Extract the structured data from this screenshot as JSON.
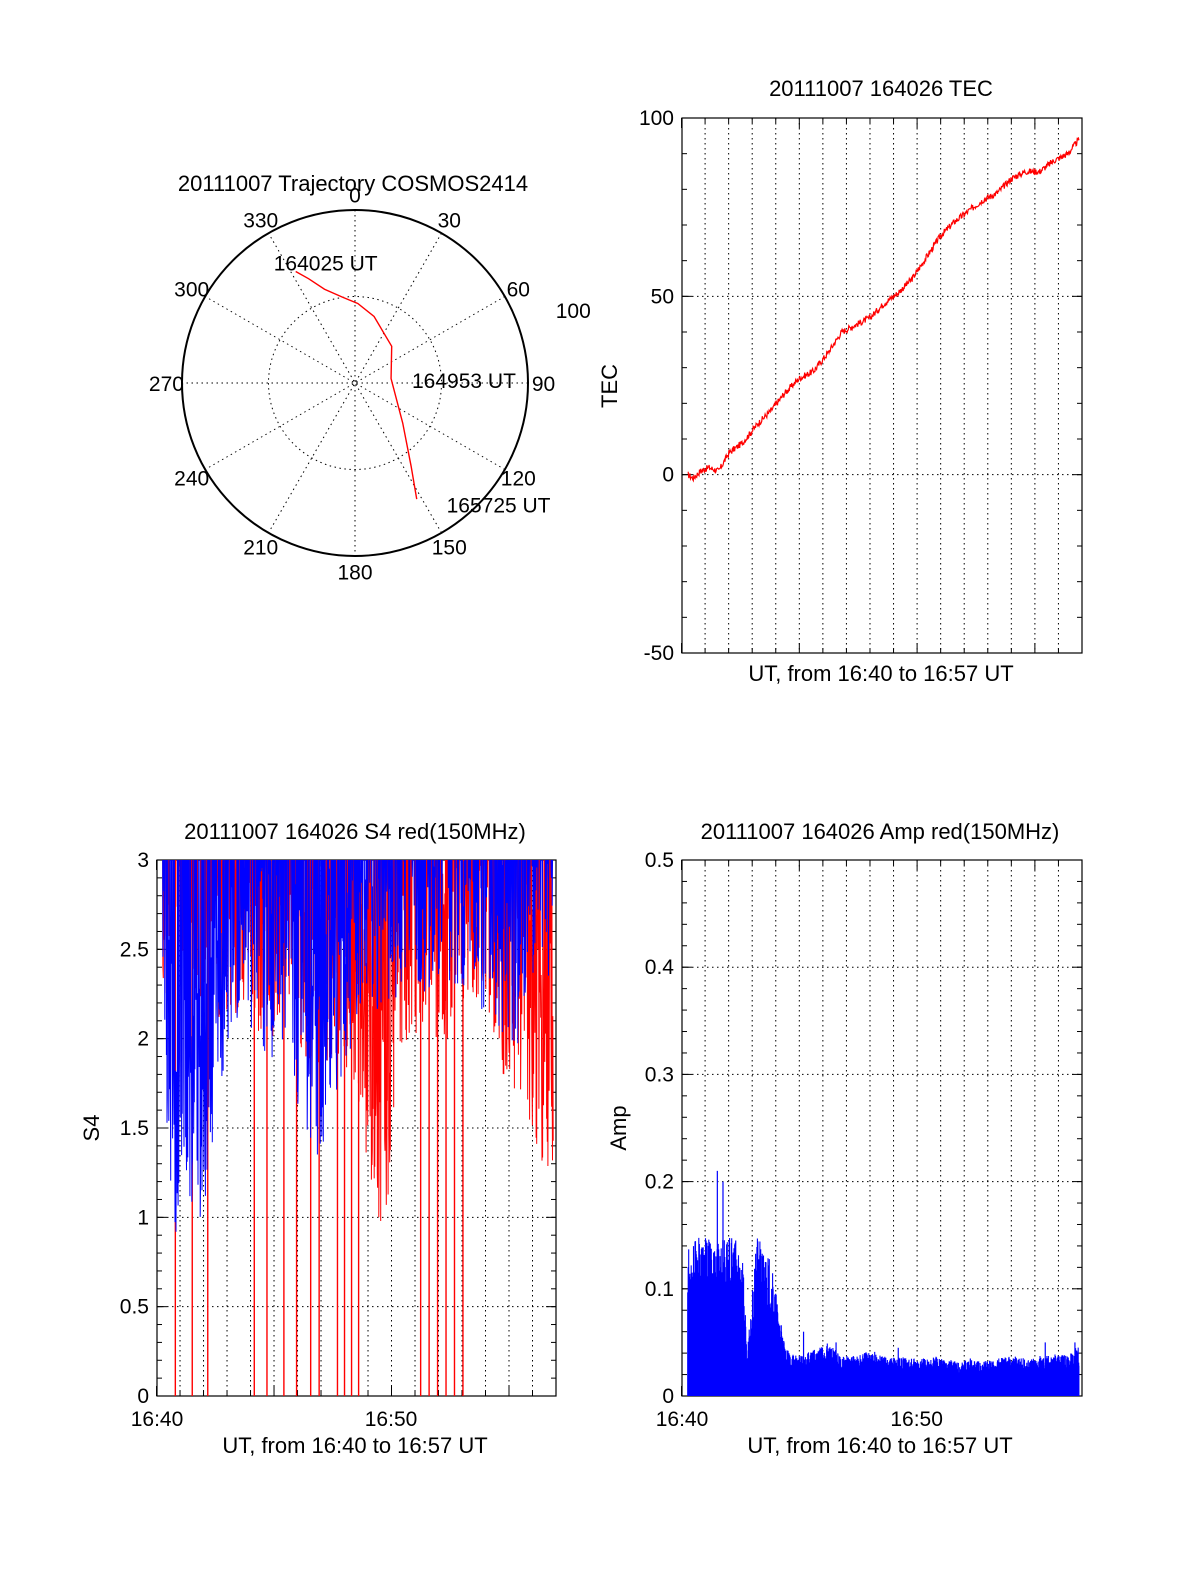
{
  "colors": {
    "red": "#ff0000",
    "blue": "#0000ff",
    "axis": "#000000"
  },
  "chart_data": [
    {
      "id": "trajectory",
      "type": "polar",
      "title": "20111007 Trajectory COSMOS2414",
      "angle_labels": [
        "0",
        "30",
        "60",
        "90",
        "120",
        "150",
        "180",
        "210",
        "240",
        "270",
        "300",
        "330"
      ],
      "radius_label": "100",
      "radius_range": [
        0,
        100
      ],
      "grid": true,
      "series": [
        {
          "color": "red",
          "points": [
            [
              332,
              73
            ],
            [
              336,
              66
            ],
            [
              342,
              57
            ],
            [
              352,
              50
            ],
            [
              2,
              46
            ],
            [
              16,
              40
            ],
            [
              45,
              30
            ],
            [
              83,
              21
            ],
            [
              130,
              36
            ],
            [
              146,
              58
            ],
            [
              152,
              76
            ]
          ]
        }
      ],
      "annotations": [
        {
          "text": "164025 UT",
          "az": 326,
          "r": 84
        },
        {
          "text": "164953 UT",
          "az": 87,
          "r": 33
        },
        {
          "text": "165725 UT",
          "az": 143,
          "r": 88
        }
      ]
    },
    {
      "id": "tec",
      "type": "line",
      "title": "20111007 164026 TEC",
      "xlabel": "UT, from 16:40 to 16:57 UT",
      "ylabel": "TEC",
      "xlim": [
        16.667,
        16.95
      ],
      "ylim": [
        -50,
        100
      ],
      "yticks": [
        "-50",
        "0",
        "50",
        "100"
      ],
      "xticks": [],
      "grid": true,
      "series": [
        {
          "color": "red",
          "x": [
            16.671,
            16.675,
            16.68,
            16.686,
            16.693,
            16.7,
            16.71,
            16.72,
            16.73,
            16.74,
            16.75,
            16.76,
            16.77,
            16.78,
            16.79,
            16.8,
            16.81,
            16.82,
            16.83,
            16.84,
            16.85,
            16.86,
            16.87,
            16.88,
            16.89,
            16.9,
            16.91,
            16.92,
            16.93,
            16.94,
            16.948
          ],
          "y": [
            0,
            -1,
            1,
            2,
            1,
            6,
            9,
            14,
            18,
            23,
            27,
            29,
            34,
            40,
            42,
            44,
            48,
            51,
            55,
            61,
            67,
            71,
            74,
            77,
            79,
            83,
            85,
            85,
            88,
            90,
            94
          ]
        }
      ]
    },
    {
      "id": "s4",
      "type": "line",
      "title": "20111007 164026 S4 red(150MHz)",
      "xlabel": "UT, from 16:40 to 16:57 UT",
      "ylabel": "S4",
      "xlim": [
        16.667,
        16.95
      ],
      "ylim": [
        0,
        3
      ],
      "yticks": [
        "0",
        "0.5",
        "1",
        "1.5",
        "2",
        "2.5",
        "3"
      ],
      "xticks": [
        {
          "value": 16.667,
          "label": "16:40"
        },
        {
          "value": 16.833,
          "label": "16:50"
        }
      ],
      "grid": true,
      "series": [
        {
          "color": "red",
          "x": [
            16.671,
            16.68,
            16.69,
            16.7,
            16.71,
            16.72,
            16.73,
            16.74,
            16.75,
            16.76,
            16.77,
            16.78,
            16.79,
            16.8,
            16.81,
            16.82,
            16.83,
            16.84,
            16.85,
            16.86,
            16.87,
            16.88,
            16.89,
            16.9,
            16.91,
            16.92,
            16.93,
            16.94,
            16.948
          ],
          "y": [
            2.6,
            2.9,
            2.8,
            2.7,
            2.6,
            2.5,
            2.6,
            2.5,
            2.4,
            2.5,
            2.4,
            2.3,
            2.2,
            2.3,
            2.1,
            1.6,
            1.3,
            2.4,
            2.5,
            2.6,
            2.4,
            2.7,
            2.6,
            2.5,
            2.3,
            2.2,
            2.0,
            1.8,
            1.7
          ],
          "dropouts": [
            16.68,
            16.692,
            16.703,
            16.736,
            16.745,
            16.757,
            16.766,
            16.776,
            16.782,
            16.795,
            16.8,
            16.805,
            16.81,
            16.854,
            16.86,
            16.866,
            16.872,
            16.878,
            16.884
          ]
        },
        {
          "color": "blue",
          "x": [
            16.671,
            16.675,
            16.68,
            16.69,
            16.7,
            16.71,
            16.72,
            16.73,
            16.74,
            16.75,
            16.76,
            16.77,
            16.78,
            16.79,
            16.8,
            16.81,
            16.82,
            16.83,
            16.84,
            16.85,
            16.86,
            16.87,
            16.88,
            16.89,
            16.9,
            16.91,
            16.92,
            16.93,
            16.94,
            16.948
          ],
          "y": [
            2.2,
            1.8,
            1.4,
            1.4,
            1.45,
            2.1,
            2.6,
            2.6,
            2.4,
            2.2,
            2.4,
            2.0,
            1.6,
            2.1,
            2.3,
            2.5,
            2.6,
            2.7,
            2.7,
            2.75,
            2.7,
            2.75,
            2.8,
            2.7,
            2.6,
            2.5,
            2.3,
            2.8,
            2.9,
            2.8
          ]
        }
      ]
    },
    {
      "id": "amp",
      "type": "area",
      "title": "20111007 164026 Amp red(150MHz)",
      "xlabel": "UT, from 16:40 to 16:57 UT",
      "ylabel": "Amp",
      "xlim": [
        16.667,
        16.95
      ],
      "ylim": [
        0,
        0.5
      ],
      "yticks": [
        "0",
        "0.1",
        "0.2",
        "0.3",
        "0.4",
        "0.5"
      ],
      "xticks": [
        {
          "value": 16.667,
          "label": "16:40"
        },
        {
          "value": 16.833,
          "label": "16:50"
        }
      ],
      "grid": true,
      "series": [
        {
          "color": "blue",
          "x": [
            16.671,
            16.68,
            16.69,
            16.7,
            16.71,
            16.713,
            16.72,
            16.73,
            16.74,
            16.75,
            16.76,
            16.77,
            16.78,
            16.79,
            16.8,
            16.81,
            16.82,
            16.83,
            16.84,
            16.85,
            16.86,
            16.87,
            16.88,
            16.89,
            16.9,
            16.91,
            16.92,
            16.93,
            16.94,
            16.948
          ],
          "y": [
            0.11,
            0.12,
            0.115,
            0.12,
            0.11,
            0.03,
            0.12,
            0.1,
            0.035,
            0.03,
            0.035,
            0.04,
            0.03,
            0.03,
            0.035,
            0.03,
            0.03,
            0.028,
            0.028,
            0.03,
            0.026,
            0.027,
            0.026,
            0.028,
            0.03,
            0.028,
            0.03,
            0.032,
            0.03,
            0.04
          ],
          "peaks": [
            [
              16.692,
              0.21
            ],
            [
              16.696,
              0.2
            ],
            [
              16.684,
              0.145
            ],
            [
              16.705,
              0.145
            ],
            [
              16.726,
              0.125
            ],
            [
              16.753,
              0.06
            ],
            [
              16.776,
              0.05
            ],
            [
              16.82,
              0.045
            ],
            [
              16.871,
              0.035
            ],
            [
              16.924,
              0.05
            ],
            [
              16.945,
              0.05
            ]
          ]
        }
      ]
    }
  ]
}
